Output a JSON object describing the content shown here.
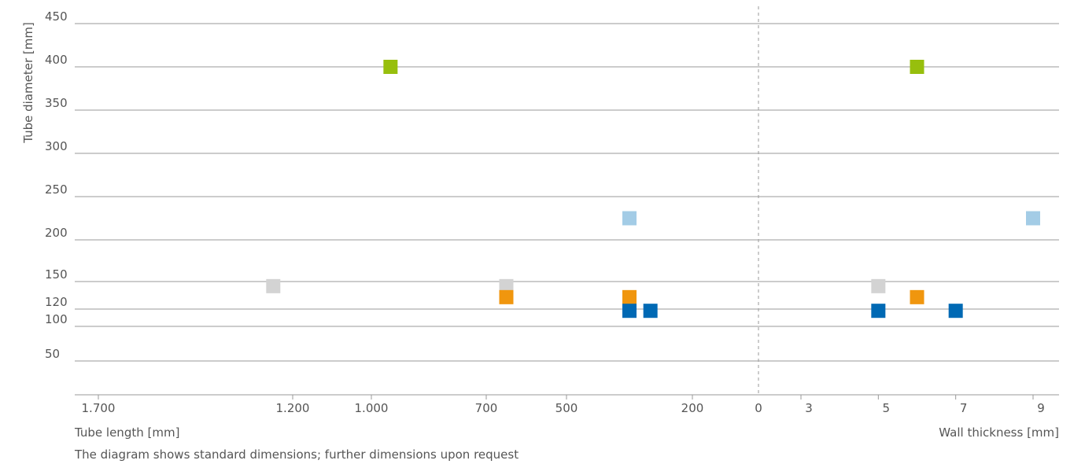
{
  "chart_data": {
    "type": "scatter",
    "ylabel": "Tube diameter [mm]",
    "y_ticks": [
      450,
      400,
      350,
      300,
      250,
      200,
      150,
      120,
      100,
      50
    ],
    "left_panel": {
      "xlabel": "Tube length [mm]",
      "x_tick_labels": [
        "1.700",
        "1.200",
        "1.000",
        "700",
        "500",
        "200",
        "0"
      ],
      "x_tick_values": [
        1700,
        1200,
        1000,
        700,
        500,
        200,
        0
      ],
      "reversed": true
    },
    "right_panel": {
      "xlabel": "Wall thickness [mm]",
      "x_tick_labels": [
        "3",
        "5",
        "7",
        "9"
      ],
      "x_tick_values": [
        3,
        5,
        7,
        9
      ]
    },
    "points": [
      {
        "length": 950,
        "thickness": 6,
        "diameter": 400,
        "color": "#97bf0d"
      },
      {
        "length": 350,
        "thickness": 9,
        "diameter": 225,
        "color": "#a3cce6"
      },
      {
        "length": 1250,
        "thickness": 5,
        "diameter": 145,
        "color": "#d3d3d3"
      },
      {
        "length": 650,
        "thickness": null,
        "diameter": 145,
        "color": "#d3d3d3"
      },
      {
        "length": 650,
        "thickness": 6,
        "diameter": 133,
        "color": "#f0960e"
      },
      {
        "length": 350,
        "thickness": null,
        "diameter": 133,
        "color": "#f0960e"
      },
      {
        "length": 350,
        "thickness": 5,
        "diameter": 118,
        "color": "#0069b4"
      },
      {
        "length": 300,
        "thickness": 7,
        "diameter": 118,
        "color": "#0069b4"
      }
    ],
    "grid": true,
    "legend": "none"
  },
  "footnote": "The diagram shows standard dimensions; further dimensions upon request"
}
